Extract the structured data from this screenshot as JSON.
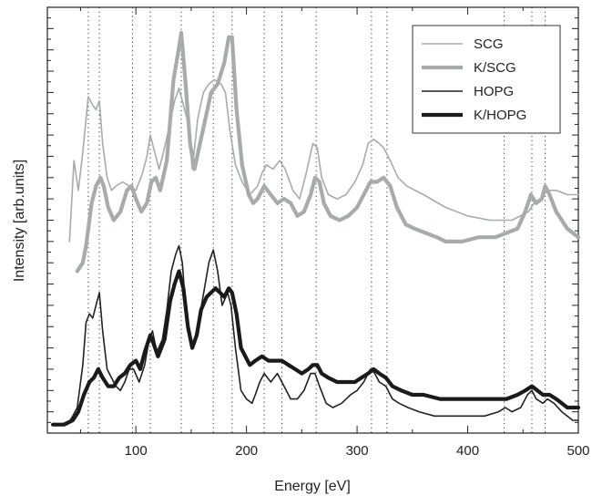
{
  "chart_data": {
    "type": "line",
    "xlabel": "Energy [eV]",
    "ylabel": "Intensity [arb.units]",
    "xlim": [
      20,
      500
    ],
    "ylim": [
      0,
      100
    ],
    "x_ticks": [
      100,
      200,
      300,
      400,
      500
    ],
    "x_tick_labels": [
      "100",
      "200",
      "300",
      "400",
      "500"
    ],
    "y_tick_labels_shown": false,
    "dotted_vertical_lines": [
      57,
      67,
      97,
      113,
      141,
      170,
      187,
      216,
      232,
      263,
      313,
      327,
      433,
      458,
      470
    ],
    "legend": {
      "position": "top-right",
      "entries": [
        "SCG",
        "K/SCG",
        "HOPG",
        "K/HOPG"
      ]
    },
    "series": [
      {
        "name": "SCG",
        "color": "#a8abab",
        "style": "thin",
        "points": [
          [
            40,
            45
          ],
          [
            44,
            64
          ],
          [
            48,
            57
          ],
          [
            52,
            66
          ],
          [
            57,
            79
          ],
          [
            61,
            77
          ],
          [
            64,
            76
          ],
          [
            67,
            78
          ],
          [
            70,
            68
          ],
          [
            74,
            60
          ],
          [
            78,
            57
          ],
          [
            82,
            58
          ],
          [
            88,
            59
          ],
          [
            94,
            58
          ],
          [
            100,
            57
          ],
          [
            106,
            61
          ],
          [
            110,
            65
          ],
          [
            113,
            70
          ],
          [
            116,
            67
          ],
          [
            121,
            62
          ],
          [
            126,
            67
          ],
          [
            131,
            73
          ],
          [
            135,
            78
          ],
          [
            139,
            81
          ],
          [
            143,
            77
          ],
          [
            147,
            73
          ],
          [
            151,
            62
          ],
          [
            156,
            74
          ],
          [
            161,
            80
          ],
          [
            166,
            82
          ],
          [
            171,
            83
          ],
          [
            177,
            82
          ],
          [
            181,
            80
          ],
          [
            185,
            71
          ],
          [
            190,
            63
          ],
          [
            196,
            59
          ],
          [
            203,
            56
          ],
          [
            210,
            58
          ],
          [
            214,
            61
          ],
          [
            218,
            63
          ],
          [
            224,
            62
          ],
          [
            230,
            64
          ],
          [
            235,
            62
          ],
          [
            242,
            57
          ],
          [
            248,
            55
          ],
          [
            254,
            61
          ],
          [
            260,
            68
          ],
          [
            264,
            67
          ],
          [
            268,
            60
          ],
          [
            274,
            56
          ],
          [
            282,
            55
          ],
          [
            290,
            56
          ],
          [
            298,
            59
          ],
          [
            305,
            63
          ],
          [
            310,
            68
          ],
          [
            315,
            69
          ],
          [
            320,
            68
          ],
          [
            324,
            67
          ],
          [
            330,
            64
          ],
          [
            337,
            60
          ],
          [
            345,
            58
          ],
          [
            360,
            56
          ],
          [
            380,
            53
          ],
          [
            400,
            51
          ],
          [
            420,
            50
          ],
          [
            440,
            50
          ],
          [
            455,
            52
          ],
          [
            460,
            54
          ],
          [
            466,
            55
          ],
          [
            472,
            57
          ],
          [
            480,
            57
          ],
          [
            490,
            56
          ],
          [
            500,
            56
          ]
        ]
      },
      {
        "name": "K/SCG",
        "color": "#a8abab",
        "style": "thick",
        "points": [
          [
            47,
            38
          ],
          [
            52,
            40
          ],
          [
            55,
            44
          ],
          [
            60,
            54
          ],
          [
            64,
            58
          ],
          [
            68,
            60
          ],
          [
            71,
            58
          ],
          [
            75,
            53
          ],
          [
            80,
            50
          ],
          [
            86,
            52
          ],
          [
            92,
            57
          ],
          [
            96,
            58
          ],
          [
            100,
            55
          ],
          [
            105,
            52
          ],
          [
            110,
            54
          ],
          [
            114,
            59
          ],
          [
            118,
            60
          ],
          [
            122,
            57
          ],
          [
            128,
            64
          ],
          [
            134,
            83
          ],
          [
            138,
            89
          ],
          [
            141,
            94
          ],
          [
            145,
            82
          ],
          [
            149,
            68
          ],
          [
            153,
            62
          ],
          [
            158,
            68
          ],
          [
            163,
            74
          ],
          [
            168,
            80
          ],
          [
            174,
            82
          ],
          [
            180,
            87
          ],
          [
            184,
            93
          ],
          [
            187,
            93
          ],
          [
            191,
            76
          ],
          [
            196,
            63
          ],
          [
            202,
            56
          ],
          [
            206,
            54
          ],
          [
            210,
            55
          ],
          [
            216,
            58
          ],
          [
            222,
            56
          ],
          [
            228,
            54
          ],
          [
            234,
            55
          ],
          [
            240,
            54
          ],
          [
            246,
            51
          ],
          [
            252,
            52
          ],
          [
            258,
            56
          ],
          [
            262,
            60
          ],
          [
            266,
            59
          ],
          [
            270,
            54
          ],
          [
            276,
            51
          ],
          [
            284,
            50
          ],
          [
            292,
            51
          ],
          [
            300,
            53
          ],
          [
            306,
            56
          ],
          [
            312,
            59
          ],
          [
            318,
            59
          ],
          [
            324,
            60
          ],
          [
            330,
            58
          ],
          [
            336,
            53
          ],
          [
            344,
            49
          ],
          [
            352,
            48
          ],
          [
            362,
            47
          ],
          [
            372,
            46
          ],
          [
            380,
            45
          ],
          [
            395,
            45
          ],
          [
            410,
            46
          ],
          [
            425,
            46
          ],
          [
            435,
            47
          ],
          [
            445,
            48
          ],
          [
            452,
            52
          ],
          [
            457,
            56
          ],
          [
            462,
            54
          ],
          [
            467,
            55
          ],
          [
            470,
            58
          ],
          [
            474,
            56
          ],
          [
            480,
            52
          ],
          [
            490,
            48
          ],
          [
            500,
            46
          ]
        ]
      },
      {
        "name": "HOPG",
        "color": "#222222",
        "style": "thin",
        "points": [
          [
            25,
            2
          ],
          [
            32,
            2
          ],
          [
            38,
            2
          ],
          [
            43,
            4
          ],
          [
            47,
            6
          ],
          [
            52,
            16
          ],
          [
            55,
            26
          ],
          [
            58,
            28
          ],
          [
            61,
            27
          ],
          [
            64,
            30
          ],
          [
            67,
            33
          ],
          [
            70,
            24
          ],
          [
            74,
            15
          ],
          [
            78,
            13
          ],
          [
            82,
            11
          ],
          [
            86,
            10
          ],
          [
            90,
            12
          ],
          [
            94,
            15
          ],
          [
            98,
            15
          ],
          [
            103,
            12
          ],
          [
            108,
            16
          ],
          [
            112,
            22
          ],
          [
            115,
            24
          ],
          [
            119,
            19
          ],
          [
            124,
            22
          ],
          [
            128,
            29
          ],
          [
            132,
            38
          ],
          [
            136,
            42
          ],
          [
            139,
            44
          ],
          [
            142,
            40
          ],
          [
            146,
            26
          ],
          [
            150,
            21
          ],
          [
            154,
            22
          ],
          [
            158,
            28
          ],
          [
            162,
            34
          ],
          [
            166,
            40
          ],
          [
            170,
            43
          ],
          [
            174,
            38
          ],
          [
            178,
            30
          ],
          [
            183,
            33
          ],
          [
            186,
            30
          ],
          [
            190,
            20
          ],
          [
            195,
            10
          ],
          [
            200,
            8
          ],
          [
            205,
            7
          ],
          [
            208,
            9
          ],
          [
            212,
            12
          ],
          [
            216,
            14
          ],
          [
            222,
            12
          ],
          [
            228,
            14
          ],
          [
            234,
            11
          ],
          [
            240,
            8
          ],
          [
            246,
            8
          ],
          [
            252,
            10
          ],
          [
            258,
            14
          ],
          [
            262,
            14
          ],
          [
            266,
            11
          ],
          [
            272,
            7
          ],
          [
            278,
            6
          ],
          [
            286,
            7
          ],
          [
            294,
            9
          ],
          [
            300,
            10
          ],
          [
            306,
            12
          ],
          [
            312,
            15
          ],
          [
            316,
            14
          ],
          [
            320,
            12
          ],
          [
            326,
            11
          ],
          [
            332,
            8
          ],
          [
            338,
            7
          ],
          [
            346,
            6
          ],
          [
            356,
            5
          ],
          [
            370,
            4
          ],
          [
            385,
            4
          ],
          [
            400,
            4
          ],
          [
            415,
            4
          ],
          [
            428,
            5
          ],
          [
            434,
            6
          ],
          [
            440,
            5
          ],
          [
            448,
            6
          ],
          [
            454,
            9
          ],
          [
            458,
            10
          ],
          [
            462,
            8
          ],
          [
            468,
            7
          ],
          [
            472,
            8
          ],
          [
            478,
            7
          ],
          [
            485,
            5
          ],
          [
            495,
            3
          ],
          [
            500,
            3
          ]
        ]
      },
      {
        "name": "K/HOPG",
        "color": "#1a1a1a",
        "style": "thick",
        "points": [
          [
            25,
            2
          ],
          [
            35,
            2
          ],
          [
            43,
            3
          ],
          [
            48,
            5
          ],
          [
            53,
            9
          ],
          [
            58,
            12
          ],
          [
            62,
            13
          ],
          [
            66,
            15
          ],
          [
            70,
            13
          ],
          [
            75,
            11
          ],
          [
            80,
            11
          ],
          [
            85,
            13
          ],
          [
            90,
            14
          ],
          [
            95,
            16
          ],
          [
            100,
            17
          ],
          [
            104,
            15
          ],
          [
            108,
            19
          ],
          [
            113,
            23
          ],
          [
            116,
            21
          ],
          [
            120,
            18
          ],
          [
            126,
            22
          ],
          [
            131,
            31
          ],
          [
            135,
            35
          ],
          [
            139,
            38
          ],
          [
            143,
            34
          ],
          [
            147,
            25
          ],
          [
            151,
            20
          ],
          [
            155,
            23
          ],
          [
            159,
            29
          ],
          [
            164,
            32
          ],
          [
            168,
            33
          ],
          [
            172,
            34
          ],
          [
            176,
            33
          ],
          [
            180,
            32
          ],
          [
            184,
            34
          ],
          [
            187,
            33
          ],
          [
            191,
            28
          ],
          [
            195,
            20
          ],
          [
            199,
            18
          ],
          [
            203,
            16
          ],
          [
            208,
            17
          ],
          [
            214,
            18
          ],
          [
            220,
            17
          ],
          [
            226,
            17
          ],
          [
            232,
            17
          ],
          [
            238,
            16
          ],
          [
            244,
            15
          ],
          [
            250,
            14
          ],
          [
            256,
            15
          ],
          [
            260,
            16
          ],
          [
            264,
            16
          ],
          [
            268,
            14
          ],
          [
            274,
            13
          ],
          [
            282,
            12
          ],
          [
            290,
            12
          ],
          [
            298,
            12
          ],
          [
            304,
            13
          ],
          [
            310,
            14
          ],
          [
            315,
            15
          ],
          [
            320,
            14
          ],
          [
            326,
            13
          ],
          [
            332,
            11
          ],
          [
            340,
            10
          ],
          [
            350,
            9
          ],
          [
            360,
            9
          ],
          [
            375,
            8
          ],
          [
            390,
            8
          ],
          [
            405,
            8
          ],
          [
            420,
            8
          ],
          [
            435,
            8
          ],
          [
            445,
            9
          ],
          [
            452,
            10
          ],
          [
            458,
            11
          ],
          [
            463,
            10
          ],
          [
            468,
            9
          ],
          [
            474,
            9
          ],
          [
            480,
            8
          ],
          [
            490,
            6
          ],
          [
            500,
            6
          ]
        ]
      }
    ]
  }
}
